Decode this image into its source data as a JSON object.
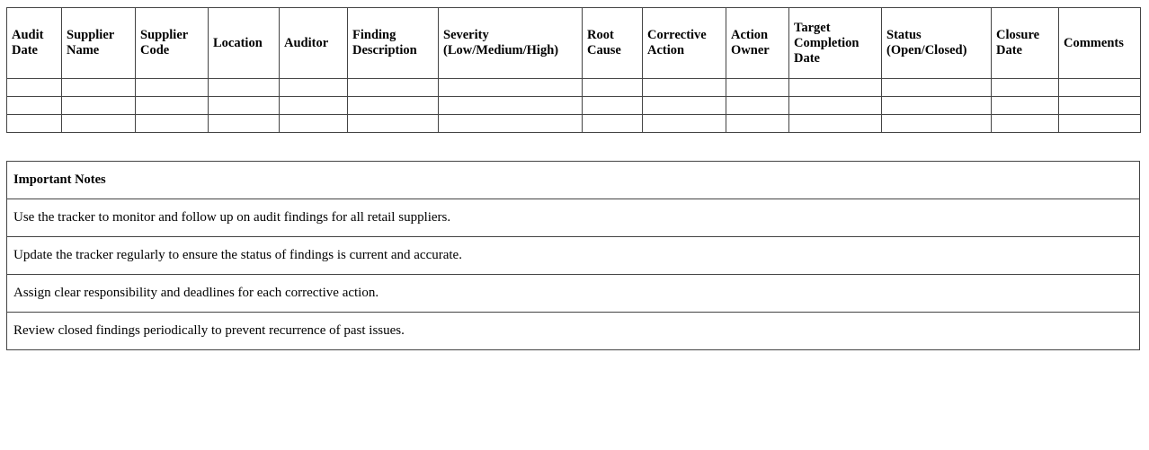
{
  "page": {
    "background_color": "#ffffff",
    "text_color": "#000000",
    "table_border_color": "#444444"
  },
  "findings_table": {
    "headers": [
      "Audit Date",
      "Supplier Name",
      "Supplier Code",
      "Location",
      "Auditor",
      "Finding Description",
      "Severity (Low/Medium/High)",
      "Root Cause",
      "Corrective Action",
      "Action Owner",
      "Target Completion Date",
      "Status (Open/Closed)",
      "Closure Date",
      "Comments"
    ],
    "empty_row_count": 3
  },
  "notes": {
    "title": "Important Notes",
    "items": [
      "Use the tracker to monitor and follow up on audit findings for all retail suppliers.",
      "Update the tracker regularly to ensure the status of findings is current and accurate.",
      "Assign clear responsibility and deadlines for each corrective action.",
      "Review closed findings periodically to prevent recurrence of past issues."
    ]
  }
}
